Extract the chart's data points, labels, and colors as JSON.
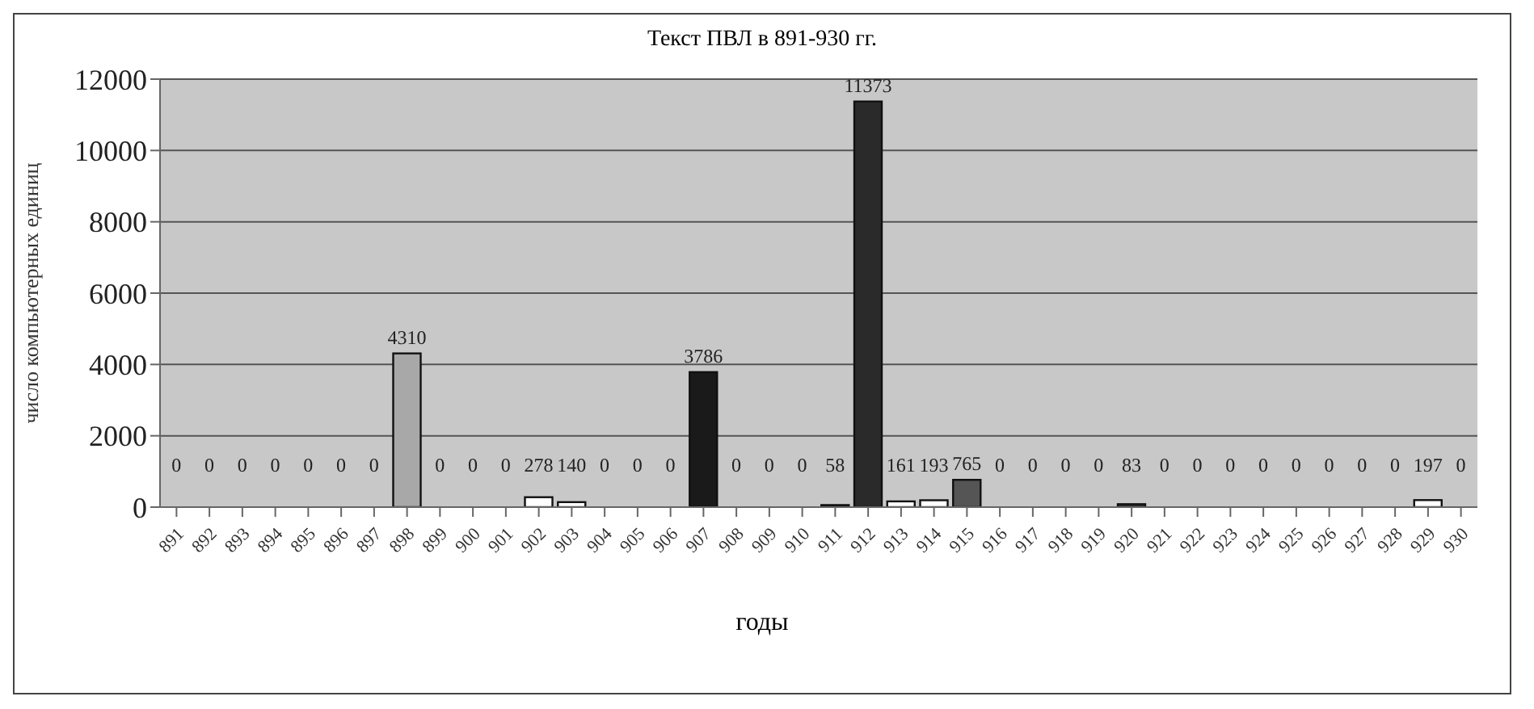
{
  "chart_data": {
    "type": "bar",
    "title": "Текст ПВЛ в 891-930 гг.",
    "xlabel": "годы",
    "ylabel": "число компьютерных единиц",
    "categories": [
      "891",
      "892",
      "893",
      "894",
      "895",
      "896",
      "897",
      "898",
      "899",
      "900",
      "901",
      "902",
      "903",
      "904",
      "905",
      "906",
      "907",
      "908",
      "909",
      "910",
      "911",
      "912",
      "913",
      "914",
      "915",
      "916",
      "917",
      "918",
      "919",
      "920",
      "921",
      "922",
      "923",
      "924",
      "925",
      "926",
      "927",
      "928",
      "929",
      "930"
    ],
    "values": [
      0,
      0,
      0,
      0,
      0,
      0,
      0,
      4310,
      0,
      0,
      0,
      278,
      140,
      0,
      0,
      0,
      3786,
      0,
      0,
      0,
      58,
      11373,
      161,
      193,
      765,
      0,
      0,
      0,
      0,
      83,
      0,
      0,
      0,
      0,
      0,
      0,
      0,
      0,
      197,
      0
    ],
    "colors": [
      "#ffffff",
      "#ffffff",
      "#ffffff",
      "#ffffff",
      "#ffffff",
      "#ffffff",
      "#ffffff",
      "#a8a8a8",
      "#ffffff",
      "#ffffff",
      "#ffffff",
      "#ffffff",
      "#ffffff",
      "#ffffff",
      "#ffffff",
      "#ffffff",
      "#1a1a1a",
      "#ffffff",
      "#ffffff",
      "#ffffff",
      "#333333",
      "#2a2a2a",
      "#ffffff",
      "#ffffff",
      "#555555",
      "#ffffff",
      "#ffffff",
      "#ffffff",
      "#ffffff",
      "#333333",
      "#ffffff",
      "#ffffff",
      "#ffffff",
      "#ffffff",
      "#ffffff",
      "#ffffff",
      "#ffffff",
      "#ffffff",
      "#ffffff",
      "#ffffff"
    ],
    "ylim": [
      0,
      12000
    ],
    "yticks": [
      0,
      2000,
      4000,
      6000,
      8000,
      10000,
      12000
    ],
    "grid": "y",
    "data_labels": true
  }
}
